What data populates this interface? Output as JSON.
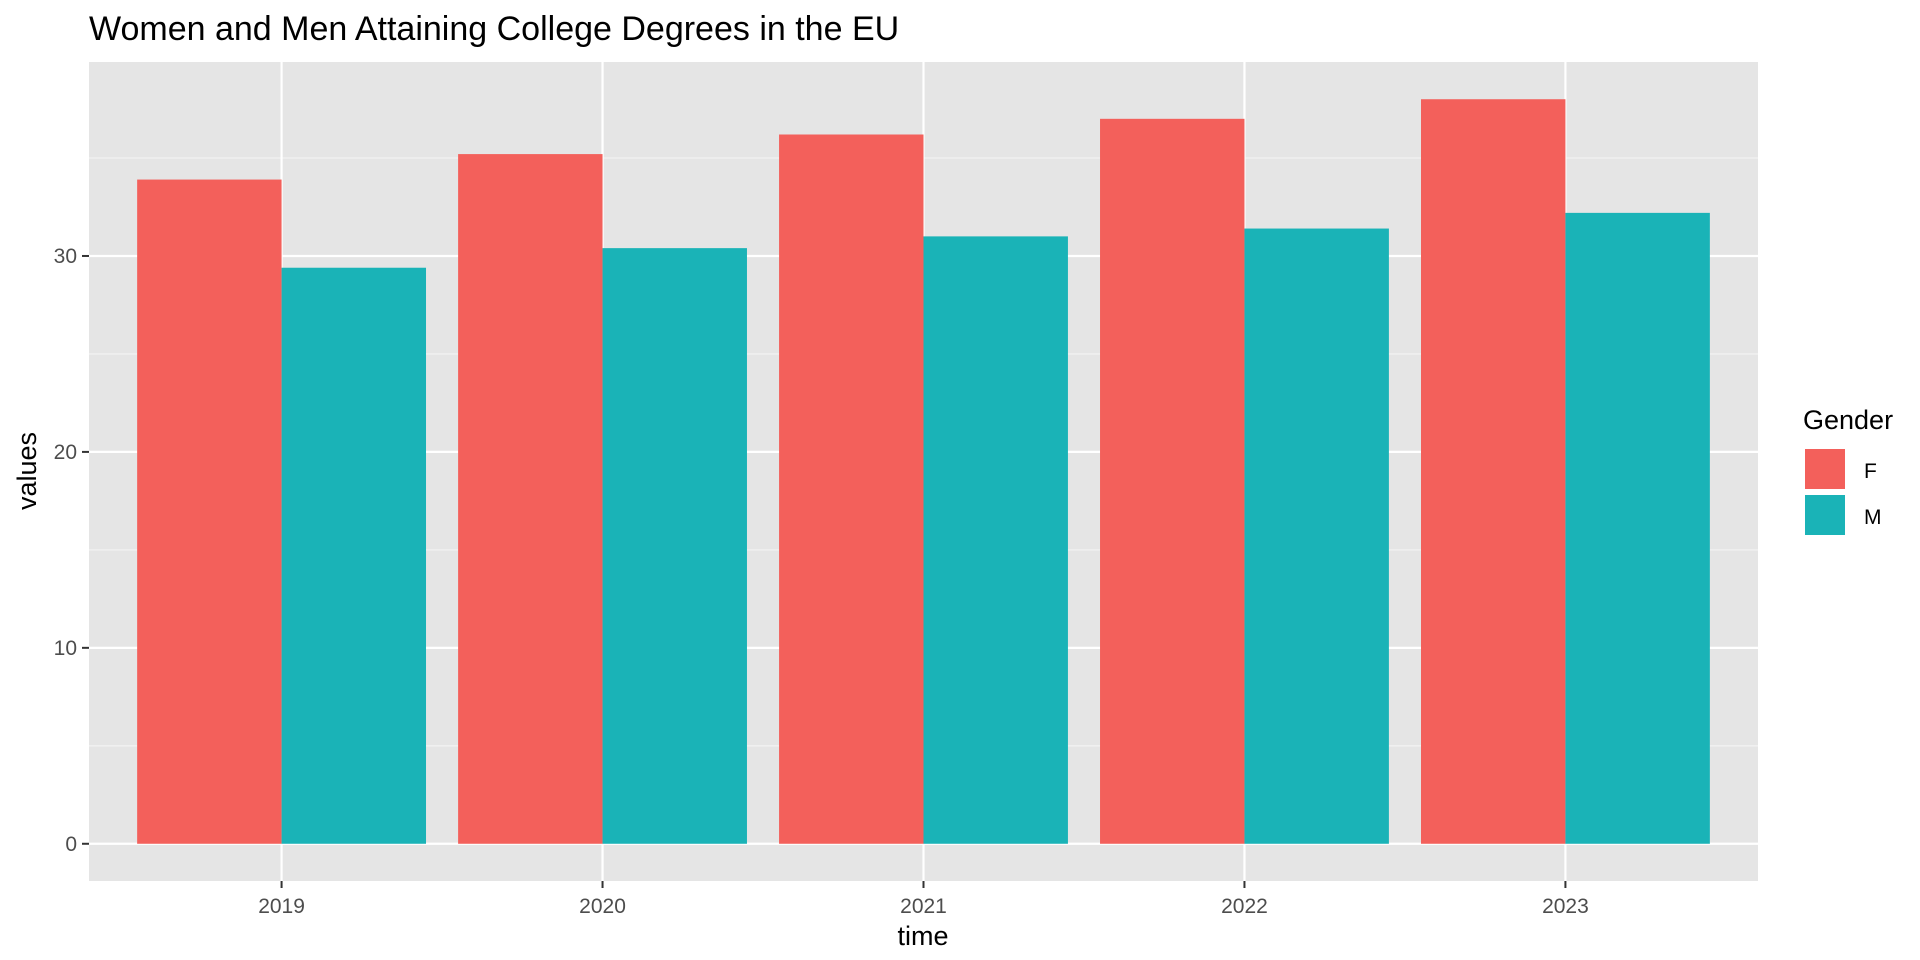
{
  "colors": {
    "panel_background": "#e5e5e5",
    "grid_major": "#ffffff",
    "grid_minor": "#f2f2f2",
    "series_F": "#f3605b",
    "series_M": "#1ab3b7"
  },
  "chart_data": {
    "type": "bar",
    "title": "Women and Men Attaining College Degrees in the EU",
    "xlabel": "time",
    "ylabel": "values",
    "categories": [
      "2019",
      "2020",
      "2021",
      "2022",
      "2023"
    ],
    "series": [
      {
        "name": "F",
        "values": [
          33.9,
          35.2,
          36.2,
          37.0,
          38.0
        ]
      },
      {
        "name": "M",
        "values": [
          29.4,
          30.4,
          31.0,
          31.4,
          32.2
        ]
      }
    ],
    "ylim": [
      -1.9,
      39.9
    ],
    "yticks": [
      "0",
      "10",
      "20",
      "30"
    ],
    "grid": true,
    "legend": {
      "title": "Gender",
      "position": "right",
      "labels": [
        "F",
        "M"
      ]
    }
  }
}
